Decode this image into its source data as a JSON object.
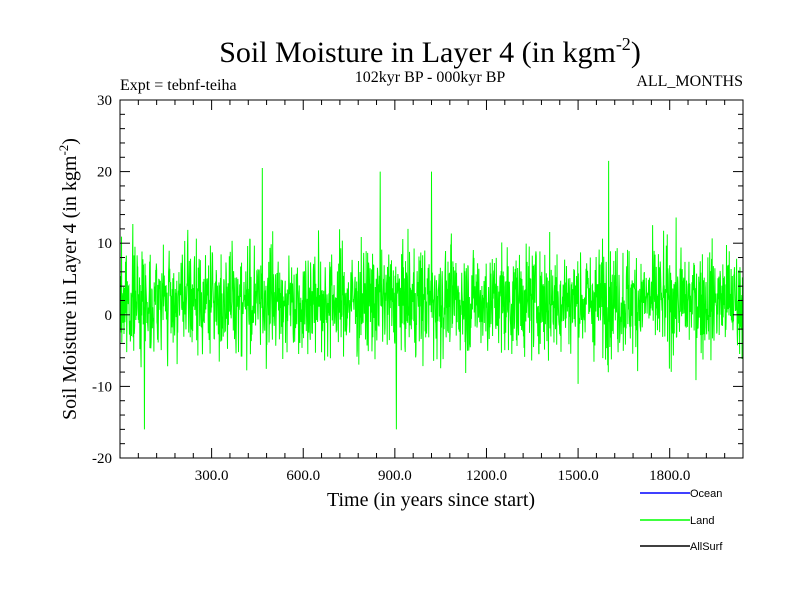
{
  "chart_data": {
    "type": "line",
    "title": "Soil Moisture in Layer 4 (in kgm",
    "title_sup": "-2",
    "title_close": ")",
    "subtitle": "102kyr BP - 000kyr BP",
    "expt_label": "Expt = tebnf-teiha",
    "months_label": "ALL_MONTHS",
    "xlabel": "Time (in years since start)",
    "ylabel": "Soil Moisture in Layer 4 (in kgm",
    "ylabel_sup": "-2",
    "ylabel_close": ")",
    "xlim": [
      0,
      2040
    ],
    "ylim": [
      -20,
      30
    ],
    "x_ticks": [
      "300.0",
      "600.0",
      "900.0",
      "1200.0",
      "1500.0",
      "1800.0"
    ],
    "x_tick_values": [
      300,
      600,
      900,
      1200,
      1500,
      1800
    ],
    "y_ticks": [
      "-20",
      "-10",
      "0",
      "10",
      "20",
      "30"
    ],
    "y_tick_values": [
      -20,
      -10,
      0,
      10,
      20,
      30
    ],
    "grid": false,
    "legend_position": "bottom-right",
    "series": [
      {
        "name": "Ocean",
        "color": "#0000ff",
        "values": []
      },
      {
        "name": "Land",
        "color": "#00ff00",
        "approx_range": [
          -16,
          21.5
        ],
        "approx_mean": 2,
        "peaks": [
          {
            "x": 80,
            "y": -16
          },
          {
            "x": 466,
            "y": 20.5
          },
          {
            "x": 852,
            "y": 20
          },
          {
            "x": 1020,
            "y": 20
          },
          {
            "x": 905,
            "y": -16
          },
          {
            "x": 1600,
            "y": 21.5
          }
        ]
      },
      {
        "name": "AllSurf",
        "color": "#000000",
        "values": []
      }
    ]
  }
}
